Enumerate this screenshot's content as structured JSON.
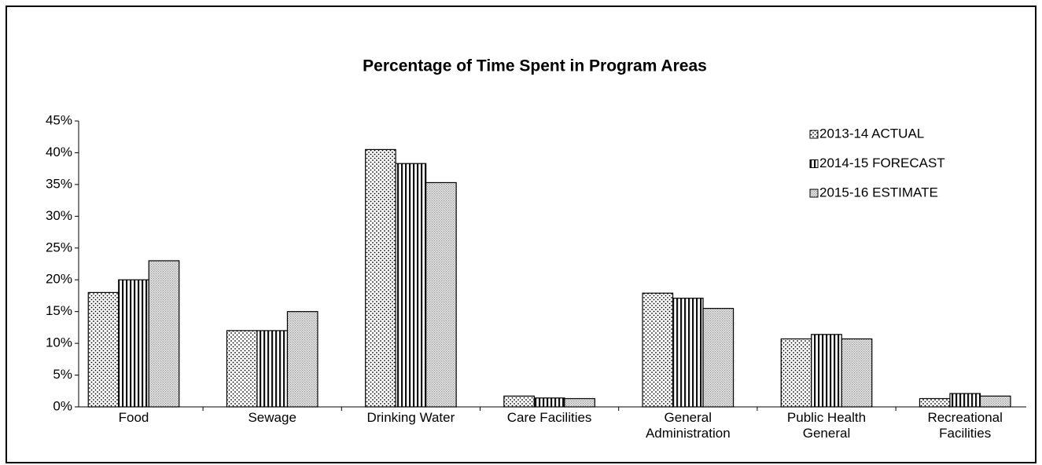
{
  "chart_data": {
    "type": "bar",
    "title": "Percentage of Time Spent in Program Areas",
    "categories": [
      "Food",
      "Sewage",
      "Drinking Water",
      "Care Facilities",
      "General Administration",
      "Public Health General",
      "Recreational Facilities"
    ],
    "series": [
      {
        "name": "2013-14 ACTUAL",
        "color": "#000000",
        "values": [
          18,
          12,
          40.5,
          1.7,
          17.9,
          10.7,
          1.3
        ]
      },
      {
        "name": "2014-15 FORECAST",
        "color": "#111111",
        "values": [
          20,
          12,
          38.3,
          1.4,
          17.1,
          11.4,
          2.1
        ]
      },
      {
        "name": "2015-16 ESTIMATE",
        "color": "#9a9a9a",
        "values": [
          23,
          15,
          35.3,
          1.3,
          15.5,
          10.7,
          1.7
        ]
      }
    ],
    "ylim": [
      0,
      45
    ],
    "yticks": [
      {
        "value": 0,
        "label": "0%"
      },
      {
        "value": 5,
        "label": "5%"
      },
      {
        "value": 10,
        "label": "10%"
      },
      {
        "value": 15,
        "label": "15%"
      },
      {
        "value": 20,
        "label": "20%"
      },
      {
        "value": 25,
        "label": "25%"
      },
      {
        "value": 30,
        "label": "30%"
      },
      {
        "value": 35,
        "label": "35%"
      },
      {
        "value": 40,
        "label": "40%"
      },
      {
        "value": 45,
        "label": "45%"
      }
    ],
    "grid": false,
    "legend": "top-right"
  }
}
